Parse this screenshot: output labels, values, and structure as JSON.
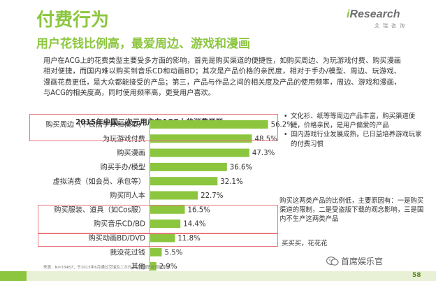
{
  "header": {
    "title": "付费行为",
    "subtitle": "用户花钱比例高，最爱周边、游戏和漫画"
  },
  "logo": {
    "mark_i": "i",
    "mark_rest": "Research",
    "sub": "艾瑞咨询"
  },
  "intro": "用户在ACG上的花费类型主要受多方面的影响，首先是购买渠道的便捷性，如购买周边、为玩游戏付费、购买漫画相对便捷，而国内难以购买到音乐CD和动画BD；其次是产品价格的亲民度，相对于手办/模型、周边、玩游戏、漫画花费更低，是大众都能接受的产品；第三，产品与作品之间的相关度及产品的使用频率，周边、游戏和漫画，与ACG的相关度高，同时使用频率高，更受用户喜欢。",
  "notes": {
    "items": [
      "文化衫、纸等等周边产品丰富，购买渠道便捷，价格亲民，是用户偏爱的产品",
      "国内游戏行业发展成熟，已日益培养游戏玩家的付费习惯"
    ],
    "cd_bd": "购买这两类产品的比例低，主要原因有：一是购买渠道的限制，二是受盗版下载的观念影响，三是国内不生产这两类产品",
    "no_spend": "买买买，花花花"
  },
  "footnote": "来源：N=33487；于2015年6月通过艾瑞及二次元入口联盟联合调研获得。",
  "watermark": "首席娱乐官",
  "page_number": "58",
  "colors": {
    "bar": "#8cc63f",
    "accent": "#8cc63f",
    "highlight": "#e7797e"
  },
  "chart_data": {
    "type": "bar",
    "orientation": "horizontal",
    "title": "2015年中国二次元用户在ACG上的消费类型",
    "categories": [
      "购买周边（不包括手办和模型）",
      "为玩游戏付费",
      "购买漫画",
      "购买手办/模型",
      "虚拟消费（如会员、承包等）",
      "购买同人本",
      "购买服装、道具（如Cos服）",
      "购买音乐CD/BD",
      "购买动画BD/DVD",
      "我没花过钱",
      "其他"
    ],
    "values": [
      56.2,
      48.5,
      47.3,
      36.6,
      32.1,
      22.7,
      16.5,
      14.4,
      11.8,
      5.5,
      2.9
    ],
    "labels": [
      "56.2%",
      "48.5%",
      "47.3%",
      "36.6%",
      "32.1%",
      "22.7%",
      "16.5%",
      "14.4%",
      "11.8%",
      "5.5%",
      "2.9%"
    ],
    "unit": "%",
    "xlim": [
      0,
      60
    ],
    "grid": false,
    "legend": "none"
  }
}
